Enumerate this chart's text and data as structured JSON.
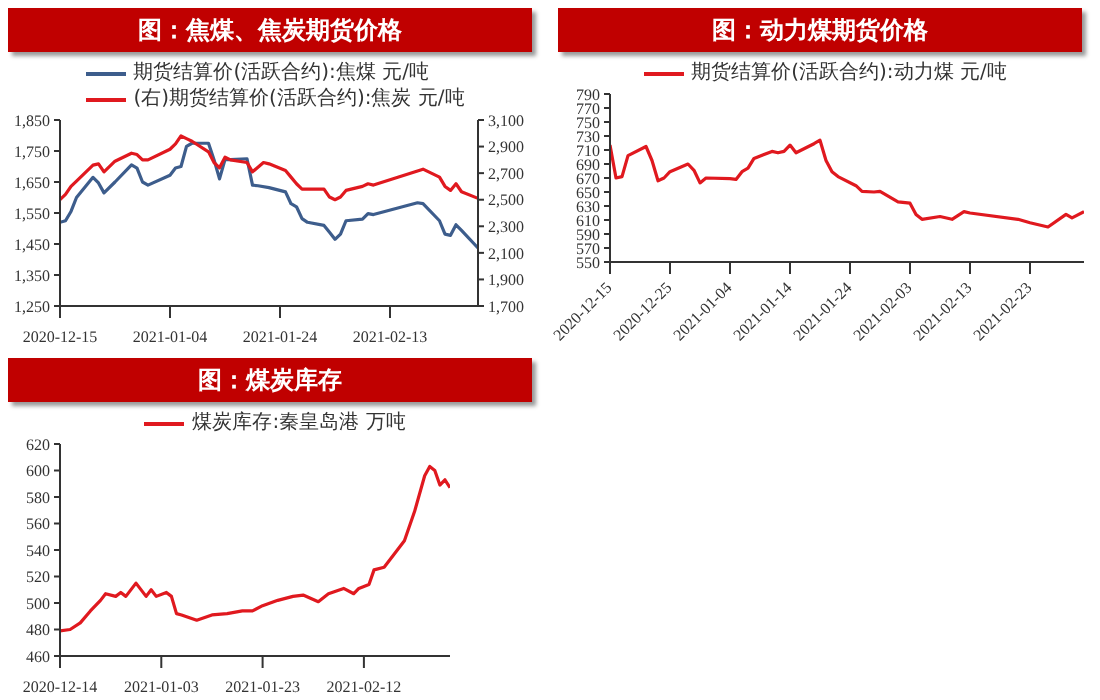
{
  "chart_data": [
    {
      "type": "line",
      "title": "图：焦煤、焦炭期货价格",
      "legend": "top",
      "xlim": [
        "2020-12-15",
        "2021-03-01"
      ],
      "xticks": [
        "2020-12-15",
        "2021-01-04",
        "2021-01-24",
        "2021-02-13"
      ],
      "ylim": [
        1250,
        1850
      ],
      "yticks": [
        {
          "value": 1250,
          "label": "1,250"
        },
        {
          "value": 1350,
          "label": "1,350"
        },
        {
          "value": 1450,
          "label": "1,450"
        },
        {
          "value": 1550,
          "label": "1,550"
        },
        {
          "value": 1650,
          "label": "1,650"
        },
        {
          "value": 1750,
          "label": "1,750"
        },
        {
          "value": 1850,
          "label": "1,850"
        }
      ],
      "y2lim": [
        1700,
        3100
      ],
      "y2ticks": [
        {
          "value": 1700,
          "label": "1,700"
        },
        {
          "value": 1900,
          "label": "1,900"
        },
        {
          "value": 2100,
          "label": "2,100"
        },
        {
          "value": 2300,
          "label": "2,300"
        },
        {
          "value": 2500,
          "label": "2,500"
        },
        {
          "value": 2700,
          "label": "2,700"
        },
        {
          "value": 2900,
          "label": "2,900"
        },
        {
          "value": 3100,
          "label": "3,100"
        }
      ],
      "series": [
        {
          "name": "期货结算价(活跃合约):焦煤 元/吨",
          "color": "#3d5d8c",
          "x": [
            "2020-12-15",
            "2020-12-16",
            "2020-12-17",
            "2020-12-18",
            "2020-12-21",
            "2020-12-22",
            "2020-12-23",
            "2020-12-25",
            "2020-12-28",
            "2020-12-29",
            "2020-12-30",
            "2020-12-31",
            "2021-01-04",
            "2021-01-05",
            "2021-01-06",
            "2021-01-07",
            "2021-01-08",
            "2021-01-11",
            "2021-01-12",
            "2021-01-13",
            "2021-01-14",
            "2021-01-15",
            "2021-01-18",
            "2021-01-19",
            "2021-01-20",
            "2021-01-22",
            "2021-01-25",
            "2021-01-26",
            "2021-01-27",
            "2021-01-28",
            "2021-01-29",
            "2021-02-01",
            "2021-02-02",
            "2021-02-03",
            "2021-02-04",
            "2021-02-05",
            "2021-02-08",
            "2021-02-09",
            "2021-02-10",
            "2021-02-18",
            "2021-02-19",
            "2021-02-22",
            "2021-02-23",
            "2021-02-24",
            "2021-02-25",
            "2021-02-26",
            "2021-03-01"
          ],
          "values": [
            1520,
            1525,
            1555,
            1600,
            1665,
            1647,
            1615,
            1650,
            1705,
            1695,
            1650,
            1640,
            1672,
            1695,
            1700,
            1765,
            1775,
            1775,
            1722,
            1660,
            1722,
            1722,
            1725,
            1640,
            1638,
            1632,
            1618,
            1580,
            1570,
            1532,
            1520,
            1510,
            1488,
            1465,
            1482,
            1525,
            1530,
            1548,
            1545,
            1583,
            1580,
            1525,
            1482,
            1478,
            1512,
            1494,
            1437
          ]
        },
        {
          "name": "(右)期货结算价(活跃合约):焦炭 元/吨",
          "color": "#e0191f",
          "axis": "y2",
          "x": [
            "2020-12-15",
            "2020-12-16",
            "2020-12-17",
            "2020-12-18",
            "2020-12-21",
            "2020-12-22",
            "2020-12-23",
            "2020-12-25",
            "2020-12-28",
            "2020-12-29",
            "2020-12-30",
            "2020-12-31",
            "2021-01-04",
            "2021-01-05",
            "2021-01-06",
            "2021-01-07",
            "2021-01-08",
            "2021-01-11",
            "2021-01-12",
            "2021-01-13",
            "2021-01-14",
            "2021-01-15",
            "2021-01-18",
            "2021-01-19",
            "2021-01-21",
            "2021-01-22",
            "2021-01-25",
            "2021-01-26",
            "2021-01-27",
            "2021-01-28",
            "2021-01-29",
            "2021-02-01",
            "2021-02-02",
            "2021-02-03",
            "2021-02-04",
            "2021-02-05",
            "2021-02-08",
            "2021-02-09",
            "2021-02-10",
            "2021-02-19",
            "2021-02-22",
            "2021-02-23",
            "2021-02-24",
            "2021-02-25",
            "2021-02-26",
            "2021-03-01"
          ],
          "values": [
            2500,
            2540,
            2600,
            2640,
            2760,
            2770,
            2710,
            2790,
            2850,
            2840,
            2800,
            2800,
            2880,
            2920,
            2980,
            2960,
            2940,
            2860,
            2780,
            2740,
            2820,
            2800,
            2780,
            2710,
            2780,
            2770,
            2720,
            2670,
            2620,
            2580,
            2580,
            2580,
            2520,
            2500,
            2520,
            2570,
            2600,
            2620,
            2610,
            2730,
            2670,
            2600,
            2570,
            2620,
            2560,
            2510
          ]
        }
      ]
    },
    {
      "type": "line",
      "title": "图：动力煤期货价格",
      "legend": "top",
      "xlim": [
        "2020-12-15",
        "2021-03-04"
      ],
      "xticks": [
        "2020-12-15",
        "2020-12-25",
        "2021-01-04",
        "2021-01-14",
        "2021-01-24",
        "2021-02-03",
        "2021-02-13",
        "2021-02-23"
      ],
      "ylim": [
        550,
        790
      ],
      "yticks": [
        550,
        570,
        590,
        610,
        630,
        650,
        670,
        690,
        710,
        730,
        750,
        770,
        790
      ],
      "series": [
        {
          "name": "期货结算价(活跃合约):动力煤 元/吨",
          "color": "#e0191f",
          "x": [
            "2020-12-15",
            "2020-12-16",
            "2020-12-17",
            "2020-12-18",
            "2020-12-21",
            "2020-12-22",
            "2020-12-23",
            "2020-12-24",
            "2020-12-25",
            "2020-12-28",
            "2020-12-29",
            "2020-12-30",
            "2020-12-31",
            "2021-01-04",
            "2021-01-05",
            "2021-01-06",
            "2021-01-07",
            "2021-01-08",
            "2021-01-11",
            "2021-01-12",
            "2021-01-13",
            "2021-01-14",
            "2021-01-15",
            "2021-01-18",
            "2021-01-19",
            "2021-01-20",
            "2021-01-21",
            "2021-01-22",
            "2021-01-25",
            "2021-01-26",
            "2021-01-28",
            "2021-01-29",
            "2021-02-01",
            "2021-02-03",
            "2021-02-04",
            "2021-02-05",
            "2021-02-08",
            "2021-02-10",
            "2021-02-12",
            "2021-02-13",
            "2021-02-21",
            "2021-02-23",
            "2021-02-26",
            "2021-03-01",
            "2021-03-02",
            "2021-03-04"
          ],
          "values": [
            717,
            670,
            672,
            702,
            715,
            695,
            666,
            670,
            679,
            690,
            681,
            663,
            670,
            669,
            668,
            679,
            684,
            698,
            708,
            706,
            708,
            717,
            706,
            719,
            724,
            695,
            679,
            672,
            659,
            651,
            650,
            651,
            636,
            634,
            618,
            611,
            615,
            611,
            622,
            620,
            611,
            606,
            600,
            618,
            613,
            622
          ]
        }
      ]
    },
    {
      "type": "line",
      "title": "图：煤炭库存",
      "legend": "top",
      "xlim": [
        "2020-12-14",
        "2021-03-01"
      ],
      "xticks": [
        "2020-12-14",
        "2021-01-03",
        "2021-01-23",
        "2021-02-12"
      ],
      "ylim": [
        460,
        620
      ],
      "yticks": [
        460,
        480,
        500,
        520,
        540,
        560,
        580,
        600,
        620
      ],
      "series": [
        {
          "name": "煤炭库存:秦皇岛港 万吨",
          "color": "#e0191f",
          "x": [
            "2020-12-14",
            "2020-12-16",
            "2020-12-18",
            "2020-12-20",
            "2020-12-22",
            "2020-12-23",
            "2020-12-25",
            "2020-12-26",
            "2020-12-27",
            "2020-12-29",
            "2020-12-31",
            "2021-01-01",
            "2021-01-02",
            "2021-01-04",
            "2021-01-05",
            "2021-01-06",
            "2021-01-07",
            "2021-01-10",
            "2021-01-13",
            "2021-01-16",
            "2021-01-19",
            "2021-01-21",
            "2021-01-23",
            "2021-01-26",
            "2021-01-29",
            "2021-01-31",
            "2021-02-03",
            "2021-02-05",
            "2021-02-08",
            "2021-02-10",
            "2021-02-11",
            "2021-02-13",
            "2021-02-14",
            "2021-02-16",
            "2021-02-18",
            "2021-02-20",
            "2021-02-22",
            "2021-02-24",
            "2021-02-25",
            "2021-02-26",
            "2021-02-27",
            "2021-02-28",
            "2021-03-01"
          ],
          "values": [
            479,
            480,
            485,
            494,
            502,
            507,
            505,
            508,
            505,
            515,
            505,
            510,
            505,
            508,
            505,
            492,
            491,
            487,
            491,
            492,
            494,
            494,
            498,
            502,
            505,
            506,
            501,
            507,
            511,
            507,
            511,
            514,
            525,
            527,
            537,
            547,
            569,
            596,
            603,
            600,
            589,
            593,
            587
          ]
        }
      ]
    }
  ]
}
